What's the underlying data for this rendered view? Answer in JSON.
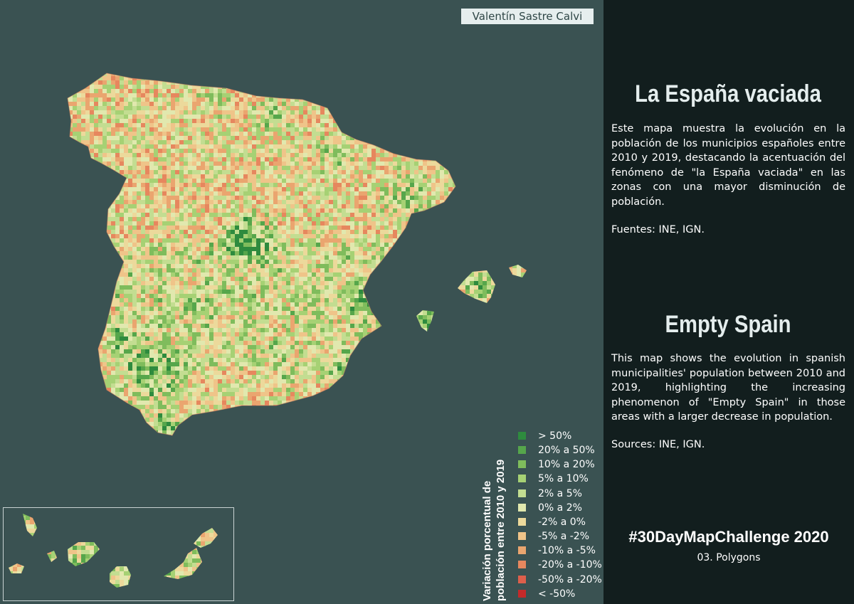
{
  "author": "Valentín Sastre Calvi",
  "legend": {
    "title": "Variación porcentual de población entre 2010 y 2019",
    "items": [
      {
        "label": "> 50%",
        "color": "#2e8b3e"
      },
      {
        "label": "20% a 50%",
        "color": "#56a64b"
      },
      {
        "label": "10% a 20%",
        "color": "#7fbc5c"
      },
      {
        "label": "5% a 10%",
        "color": "#a6d174"
      },
      {
        "label": "2% a 5%",
        "color": "#c3dd91"
      },
      {
        "label": "0% a 2%",
        "color": "#e1e8ae"
      },
      {
        "label": "-2% a 0%",
        "color": "#ecd99b"
      },
      {
        "label": "-5% a -2%",
        "color": "#efc489"
      },
      {
        "label": "-10% a -5%",
        "color": "#eaa56f"
      },
      {
        "label": "-20% a -10%",
        "color": "#e6875e"
      },
      {
        "label": "-50% a -20%",
        "color": "#dd5f4b"
      },
      {
        "label": "< -50%",
        "color": "#c42a2a"
      }
    ]
  },
  "panel": {
    "title_es": "La España vaciada",
    "text_es": "Este mapa muestra la evolución en la población de los municipios españoles entre 2010 y 2019, destacando la acentuación del fenómeno de \"la España vaciada\" en las zonas con una mayor disminución de población.",
    "sources_es": "Fuentes: INE, IGN.",
    "title_en": "Empty Spain",
    "text_en": "This map shows the evolution in spanish municipalities' population between 2010 and 2019, highlighting the increasing phenomenon of \"Empty Spain\" in those areas with a larger decrease in population.",
    "sources_en": "Sources: INE, IGN.",
    "challenge": "#30DayMapChallenge 2020",
    "challenge_sub": "03. Polygons"
  },
  "colors": {
    "background": "#3a5252",
    "panel": "#121e1e"
  }
}
